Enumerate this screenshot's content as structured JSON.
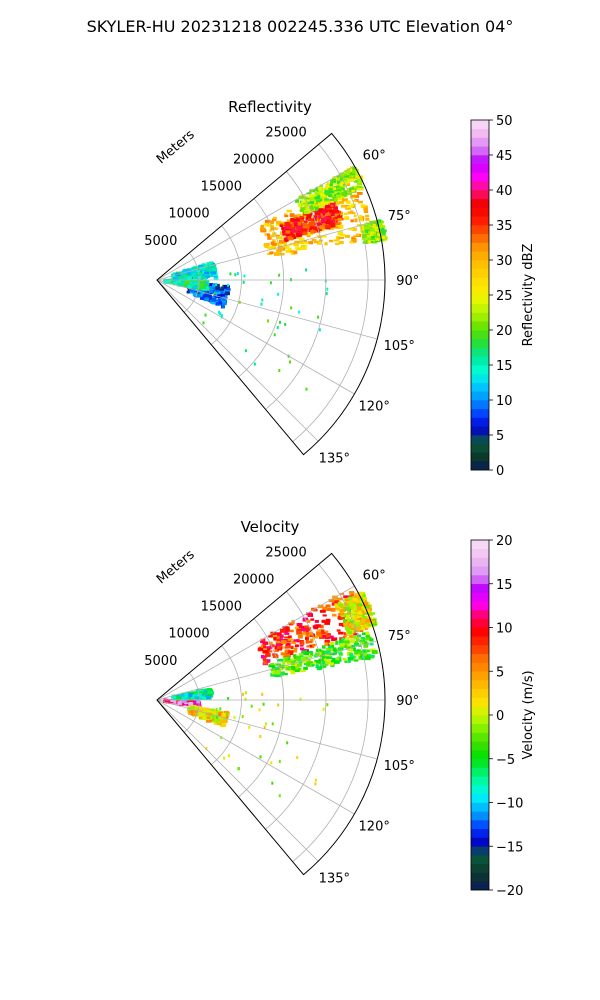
{
  "figure": {
    "title": "SKYLER-HU  20231218  002245.336 UTC Elevation 04°"
  },
  "chart_data": [
    {
      "type": "heatmap",
      "projection": "polar-sector",
      "title": "Reflectivity",
      "radial_label": "Meters",
      "radial_ticks": [
        "5000",
        "10000",
        "15000",
        "20000",
        "25000"
      ],
      "radial_tick_values": [
        5000,
        10000,
        15000,
        20000,
        25000
      ],
      "rlim": [
        0,
        27000
      ],
      "angle_ticks": [
        "60°",
        "75°",
        "90°",
        "105°",
        "120°",
        "135°"
      ],
      "angle_tick_values": [
        60,
        75,
        90,
        105,
        120,
        135
      ],
      "angle_range": [
        50,
        140
      ],
      "grid": true,
      "colorbar": {
        "label": "Reflectivity dBZ",
        "ticks": [
          "0",
          "5",
          "10",
          "15",
          "20",
          "25",
          "30",
          "35",
          "40",
          "45",
          "50"
        ],
        "range": [
          0,
          50
        ],
        "steps": 40,
        "stops": [
          [
            0,
            "#0a1a5a"
          ],
          [
            0.04,
            "#0d3a2a"
          ],
          [
            0.08,
            "#0a5a40"
          ],
          [
            0.12,
            "#0000d0"
          ],
          [
            0.16,
            "#0040ff"
          ],
          [
            0.2,
            "#0090ff"
          ],
          [
            0.24,
            "#00c8ff"
          ],
          [
            0.28,
            "#00ffd8"
          ],
          [
            0.32,
            "#00e8a0"
          ],
          [
            0.36,
            "#20e040"
          ],
          [
            0.4,
            "#58e000"
          ],
          [
            0.44,
            "#a0f000"
          ],
          [
            0.48,
            "#e0f800"
          ],
          [
            0.52,
            "#ffe800"
          ],
          [
            0.56,
            "#ffd000"
          ],
          [
            0.6,
            "#ffb800"
          ],
          [
            0.64,
            "#ff9000"
          ],
          [
            0.68,
            "#ff5000"
          ],
          [
            0.72,
            "#ff1000"
          ],
          [
            0.76,
            "#f00000"
          ],
          [
            0.8,
            "#ff1080"
          ],
          [
            0.84,
            "#ff00ff"
          ],
          [
            0.88,
            "#c000ff"
          ],
          [
            0.92,
            "#d880f8"
          ],
          [
            0.96,
            "#f0b8f0"
          ],
          [
            1,
            "#f8e0f8"
          ]
        ]
      },
      "echo_regions": [
        {
          "az": [
            62,
            79
          ],
          "r": [
            13500,
            26500
          ],
          "value": 29
        },
        {
          "az": [
            66,
            73
          ],
          "r": [
            16000,
            23000
          ],
          "value": 36
        },
        {
          "az": [
            60,
            66
          ],
          "r": [
            19000,
            27000
          ],
          "value": 22
        },
        {
          "az": [
            75,
            80
          ],
          "r": [
            25000,
            27500
          ],
          "value": 22
        },
        {
          "az": [
            95,
            112
          ],
          "r": [
            4000,
            8500
          ],
          "value": 8
        },
        {
          "az": [
            92,
            102
          ],
          "r": [
            1000,
            6000
          ],
          "value": 16
        },
        {
          "az": [
            72,
            88
          ],
          "r": [
            2000,
            7000
          ],
          "value": 14
        },
        {
          "az": [
            85,
            135
          ],
          "r": [
            7000,
            22000
          ],
          "value": 17
        }
      ]
    },
    {
      "type": "heatmap",
      "projection": "polar-sector",
      "title": "Velocity",
      "radial_label": "Meters",
      "radial_ticks": [
        "5000",
        "10000",
        "15000",
        "20000",
        "25000"
      ],
      "radial_tick_values": [
        5000,
        10000,
        15000,
        20000,
        25000
      ],
      "rlim": [
        0,
        27000
      ],
      "angle_ticks": [
        "60°",
        "75°",
        "90°",
        "105°",
        "120°",
        "135°"
      ],
      "angle_tick_values": [
        60,
        75,
        90,
        105,
        120,
        135
      ],
      "angle_range": [
        50,
        140
      ],
      "grid": true,
      "colorbar": {
        "label": "Velocity (m/s)",
        "ticks": [
          "−20",
          "−15",
          "−10",
          "−5",
          "0",
          "5",
          "10",
          "15",
          "20"
        ],
        "range": [
          -20,
          20
        ],
        "steps": 40,
        "stops": [
          [
            0,
            "#0a1a5a"
          ],
          [
            0.05,
            "#0d3a2a"
          ],
          [
            0.1,
            "#0a5a40"
          ],
          [
            0.14,
            "#0000d0"
          ],
          [
            0.18,
            "#0040ff"
          ],
          [
            0.22,
            "#00a0ff"
          ],
          [
            0.26,
            "#00e8ff"
          ],
          [
            0.3,
            "#00ffc0"
          ],
          [
            0.34,
            "#00f060"
          ],
          [
            0.38,
            "#00e000"
          ],
          [
            0.42,
            "#40e000"
          ],
          [
            0.46,
            "#80f000"
          ],
          [
            0.5,
            "#c8f800"
          ],
          [
            0.54,
            "#ffe000"
          ],
          [
            0.58,
            "#ffc000"
          ],
          [
            0.62,
            "#ff9800"
          ],
          [
            0.66,
            "#ff7000"
          ],
          [
            0.7,
            "#ff3000"
          ],
          [
            0.74,
            "#ff0000"
          ],
          [
            0.78,
            "#ff0060"
          ],
          [
            0.82,
            "#ff00ff"
          ],
          [
            0.86,
            "#c000ff"
          ],
          [
            0.9,
            "#d890f8"
          ],
          [
            0.95,
            "#f0c0f0"
          ],
          [
            1,
            "#f8e0f8"
          ]
        ]
      },
      "echo_regions": [
        {
          "az": [
            60,
            72
          ],
          "r": [
            13500,
            26500
          ],
          "value": 8
        },
        {
          "az": [
            72,
            79
          ],
          "r": [
            14000,
            26500
          ],
          "value": -3
        },
        {
          "az": [
            62,
            71
          ],
          "r": [
            24000,
            27500
          ],
          "value": 1
        },
        {
          "az": [
            92,
            99
          ],
          "r": [
            1000,
            5000
          ],
          "value": 14
        },
        {
          "az": [
            78,
            88
          ],
          "r": [
            2000,
            6500
          ],
          "value": -8
        },
        {
          "az": [
            100,
            112
          ],
          "r": [
            4000,
            8500
          ],
          "value": 2
        },
        {
          "az": [
            85,
            135
          ],
          "r": [
            7000,
            22000
          ],
          "value": 0
        }
      ]
    }
  ]
}
